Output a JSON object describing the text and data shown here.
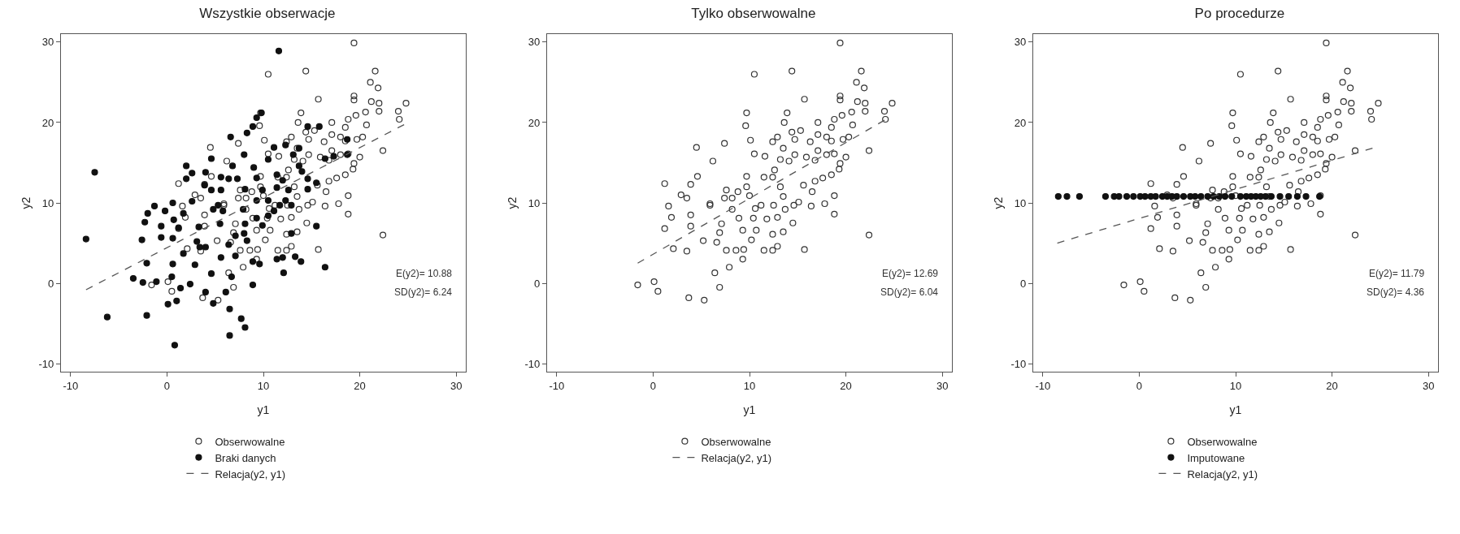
{
  "chart_data": [
    {
      "type": "scatter",
      "title": "Wszystkie obserwacje",
      "xlabel": "y1",
      "ylabel": "y2",
      "xlim": [
        -11,
        31
      ],
      "ylim": [
        -11,
        31
      ],
      "xticks": [
        -10,
        0,
        10,
        20,
        30
      ],
      "yticks": [
        -10,
        0,
        10,
        20,
        30
      ],
      "grid": false,
      "legend": "bottom",
      "annotations": [
        "E(y2)= 10.88",
        "SD(y2)= 6.24"
      ],
      "series": [
        {
          "name": "Obserwowalne",
          "marker": "circle-open",
          "color": "#333333",
          "x": [
            -1.6,
            0.1,
            0.5,
            3.7,
            5.3,
            6.9,
            6.4,
            7.9,
            9.3,
            1.2,
            1.6,
            1.9,
            1.2,
            2.1,
            3.5,
            2.9,
            3.9,
            4.6,
            4.5,
            6.2,
            3.9,
            3.9,
            5.2,
            5.9,
            6.6,
            6.9,
            7.1,
            7.6,
            7.4,
            7.6,
            8.6,
            9.4,
            9.3,
            8.9,
            9.7,
            9.7,
            9.6,
            9.7,
            10.1,
            10.5,
            10.5,
            11.6,
            10.2,
            10.7,
            11.5,
            12.4,
            12.9,
            12.4,
            13.5,
            10.4,
            11.8,
            12.9,
            14.5,
            15.7,
            11.2,
            12.5,
            13.7,
            14.6,
            13.5,
            15.1,
            16.4,
            17.8,
            18.8,
            18.8,
            22.4,
            16.5,
            15.6,
            16.8,
            17.6,
            18.5,
            13.2,
            12.4,
            11.5,
            12.6,
            13.2,
            14.1,
            14.7,
            15.9,
            16.8,
            17.1,
            18.0,
            18.8,
            19.4,
            20.0,
            19.3,
            13.5,
            12.4,
            12.9,
            14.4,
            15.3,
            14.7,
            16.3,
            17.1,
            18.0,
            18.5,
            19.7,
            20.3,
            17.1,
            18.5,
            18.8,
            19.6,
            20.6,
            20.7,
            19.4,
            19.4,
            21.2,
            22.0,
            22.0,
            21.9,
            21.1,
            21.6,
            19.4,
            14.4,
            15.7,
            13.9,
            13.6,
            22.4,
            24.8,
            24.0,
            24.1,
            8.2,
            8.8,
            10.0,
            10.6,
            8.2,
            7.4,
            5.9,
            3.5
          ],
          "values": [
            -0.2,
            0.2,
            -1.0,
            -1.8,
            -2.1,
            -0.5,
            1.3,
            2.0,
            3.0,
            12.4,
            9.6,
            8.2,
            6.8,
            4.3,
            4.0,
            11.0,
            12.3,
            13.3,
            16.9,
            15.2,
            8.5,
            7.1,
            5.3,
            9.9,
            5.1,
            6.3,
            7.4,
            11.6,
            17.4,
            4.1,
            4.1,
            4.2,
            6.6,
            8.1,
            12.0,
            13.3,
            19.6,
            21.2,
            17.8,
            26.0,
            16.1,
            15.8,
            5.4,
            6.6,
            4.1,
            4.1,
            4.6,
            6.1,
            6.4,
            8.1,
            8.0,
            8.2,
            7.5,
            4.2,
            9.7,
            9.7,
            9.2,
            9.7,
            10.8,
            10.1,
            9.6,
            9.9,
            8.6,
            10.9,
            6.0,
            11.4,
            12.2,
            12.7,
            13.1,
            13.5,
            12.0,
            13.2,
            13.2,
            14.1,
            15.4,
            15.2,
            16.0,
            15.7,
            15.3,
            16.5,
            16.0,
            16.1,
            14.9,
            15.7,
            14.2,
            16.8,
            17.6,
            18.2,
            18.8,
            19.0,
            17.9,
            17.6,
            18.5,
            18.2,
            17.7,
            17.9,
            18.2,
            20.0,
            19.4,
            20.4,
            20.9,
            21.3,
            19.7,
            23.3,
            22.8,
            22.6,
            22.4,
            21.4,
            24.3,
            25.0,
            26.4,
            29.9,
            26.4,
            22.9,
            21.2,
            20.0,
            16.5,
            22.4,
            21.4,
            20.4,
            10.6,
            11.4,
            10.9,
            9.3,
            9.2,
            10.6,
            9.7,
            10.6
          ]
        },
        {
          "name": "Braki danych",
          "marker": "circle",
          "color": "#111111",
          "x": [
            -7.5,
            -8.4,
            -6.2,
            0.8,
            -2.1,
            -3.5,
            -2.5,
            -1.1,
            0.1,
            1.0,
            1.4,
            2.4,
            0.5,
            0.6,
            -2.1,
            -2.6,
            -0.6,
            0.6,
            -0.6,
            1.2,
            -2.3,
            -2.0,
            -1.3,
            -0.2,
            0.6,
            0.7,
            1.7,
            1.7,
            2.9,
            3.1,
            3.4,
            4.0,
            3.3,
            2.6,
            2.0,
            2.6,
            2.0,
            4.0,
            4.6,
            3.9,
            4.6,
            5.6,
            6.4,
            5.6,
            5.3,
            4.8,
            5.8,
            5.5,
            4.6,
            4.0,
            4.8,
            6.1,
            6.5,
            6.5,
            7.7,
            8.1,
            6.7,
            5.6,
            6.4,
            7.1,
            8.0,
            8.3,
            7.1,
            8.9,
            8.9,
            9.6,
            6.6,
            8.0,
            8.3,
            8.9,
            9.3,
            9.8,
            6.8,
            7.3,
            8.1,
            9.0,
            9.3,
            9.9,
            9.3,
            10.5,
            11.1,
            10.5,
            9.3,
            9.9,
            8.1,
            11.4,
            12.0,
            12.6,
            12.3,
            11.4,
            10.5,
            11.1,
            12.3,
            13.1,
            13.7,
            11.6,
            12.1,
            11.4,
            12.0,
            13.3,
            13.9,
            12.9,
            15.5,
            16.4,
            13.7,
            14.0,
            14.6,
            14.6,
            15.5,
            15.8,
            14.6,
            18.7,
            17.3,
            18.7,
            16.4,
            12.9,
            11.7,
            7.9
          ],
          "values": [
            13.8,
            5.5,
            -4.2,
            -7.7,
            -4.0,
            0.6,
            0.1,
            0.2,
            -2.6,
            -2.2,
            -0.6,
            -0.1,
            0.8,
            2.4,
            2.5,
            5.4,
            5.7,
            5.6,
            7.1,
            6.9,
            7.6,
            8.7,
            9.6,
            9.0,
            10.0,
            7.9,
            8.7,
            3.7,
            2.3,
            5.2,
            4.5,
            4.5,
            7.0,
            10.2,
            14.6,
            13.7,
            13.0,
            13.8,
            15.5,
            12.2,
            11.6,
            13.2,
            13.0,
            11.6,
            9.7,
            9.2,
            9.0,
            7.4,
            1.2,
            -1.1,
            -2.5,
            -1.1,
            -3.2,
            -6.5,
            -4.4,
            -5.5,
            0.8,
            3.2,
            4.8,
            5.9,
            6.2,
            5.3,
            3.4,
            2.7,
            -0.2,
            2.4,
            18.2,
            16.0,
            18.7,
            19.5,
            20.6,
            21.2,
            14.6,
            13.0,
            11.7,
            14.4,
            13.1,
            11.6,
            10.3,
            10.3,
            9.0,
            8.4,
            8.1,
            7.2,
            7.4,
            11.9,
            12.8,
            11.6,
            10.3,
            13.5,
            15.4,
            16.9,
            17.2,
            16.0,
            16.8,
            28.9,
            1.3,
            3.0,
            3.2,
            3.3,
            2.7,
            6.2,
            7.1,
            2.0,
            14.6,
            13.9,
            13.0,
            11.7,
            12.5,
            19.5,
            19.5,
            17.9,
            15.8,
            16.0,
            15.5,
            9.7,
            9.7,
            9.2
          ]
        },
        {
          "name": "Relacja(y2, y1)",
          "type": "line",
          "line_style": "dashed",
          "color": "#555555",
          "x": [
            -8.4,
            24.7
          ],
          "values": [
            -0.8,
            19.8
          ]
        }
      ]
    },
    {
      "type": "scatter",
      "title": "Tylko obserwowalne",
      "xlabel": "y1",
      "ylabel": "y2",
      "xlim": [
        -11,
        31
      ],
      "ylim": [
        -11,
        31
      ],
      "xticks": [
        -10,
        0,
        10,
        20,
        30
      ],
      "yticks": [
        -10,
        0,
        10,
        20,
        30
      ],
      "grid": false,
      "legend": "bottom",
      "annotations": [
        "E(y2)= 12.69",
        "SD(y2)= 6.04"
      ],
      "series": [
        {
          "name": "Obserwowalne",
          "marker": "circle-open",
          "color": "#333333",
          "x": [
            -1.6,
            0.1,
            0.5,
            3.7,
            5.3,
            6.9,
            6.4,
            7.9,
            9.3,
            1.2,
            1.6,
            1.9,
            1.2,
            2.1,
            3.5,
            2.9,
            3.9,
            4.6,
            4.5,
            6.2,
            3.9,
            3.9,
            5.2,
            5.9,
            6.6,
            6.9,
            7.1,
            7.6,
            7.4,
            7.6,
            8.6,
            9.4,
            9.3,
            8.9,
            9.7,
            9.7,
            9.6,
            9.7,
            10.1,
            10.5,
            10.5,
            11.6,
            10.2,
            10.7,
            11.5,
            12.4,
            12.9,
            12.4,
            13.5,
            10.4,
            11.8,
            12.9,
            14.5,
            15.7,
            11.2,
            12.5,
            13.7,
            14.6,
            13.5,
            15.1,
            16.4,
            17.8,
            18.8,
            18.8,
            22.4,
            16.5,
            15.6,
            16.8,
            17.6,
            18.5,
            13.2,
            12.4,
            11.5,
            12.6,
            13.2,
            14.1,
            14.7,
            15.9,
            16.8,
            17.1,
            18.0,
            18.8,
            19.4,
            20.0,
            19.3,
            13.5,
            12.4,
            12.9,
            14.4,
            15.3,
            14.7,
            16.3,
            17.1,
            18.0,
            18.5,
            19.7,
            20.3,
            17.1,
            18.5,
            18.8,
            19.6,
            20.6,
            20.7,
            19.4,
            19.4,
            21.2,
            22.0,
            22.0,
            21.9,
            21.1,
            21.6,
            19.4,
            14.4,
            15.7,
            13.9,
            13.6,
            22.4,
            24.8,
            24.0,
            24.1,
            8.2,
            8.8,
            10.0,
            10.6,
            8.2,
            7.4,
            5.9,
            3.5
          ],
          "values": [
            -0.2,
            0.2,
            -1.0,
            -1.8,
            -2.1,
            -0.5,
            1.3,
            2.0,
            3.0,
            12.4,
            9.6,
            8.2,
            6.8,
            4.3,
            4.0,
            11.0,
            12.3,
            13.3,
            16.9,
            15.2,
            8.5,
            7.1,
            5.3,
            9.9,
            5.1,
            6.3,
            7.4,
            11.6,
            17.4,
            4.1,
            4.1,
            4.2,
            6.6,
            8.1,
            12.0,
            13.3,
            19.6,
            21.2,
            17.8,
            26.0,
            16.1,
            15.8,
            5.4,
            6.6,
            4.1,
            4.1,
            4.6,
            6.1,
            6.4,
            8.1,
            8.0,
            8.2,
            7.5,
            4.2,
            9.7,
            9.7,
            9.2,
            9.7,
            10.8,
            10.1,
            9.6,
            9.9,
            8.6,
            10.9,
            6.0,
            11.4,
            12.2,
            12.7,
            13.1,
            13.5,
            12.0,
            13.2,
            13.2,
            14.1,
            15.4,
            15.2,
            16.0,
            15.7,
            15.3,
            16.5,
            16.0,
            16.1,
            14.9,
            15.7,
            14.2,
            16.8,
            17.6,
            18.2,
            18.8,
            19.0,
            17.9,
            17.6,
            18.5,
            18.2,
            17.7,
            17.9,
            18.2,
            20.0,
            19.4,
            20.4,
            20.9,
            21.3,
            19.7,
            23.3,
            22.8,
            22.6,
            22.4,
            21.4,
            24.3,
            25.0,
            26.4,
            29.9,
            26.4,
            22.9,
            21.2,
            20.0,
            16.5,
            22.4,
            21.4,
            20.4,
            10.6,
            11.4,
            10.9,
            9.3,
            9.2,
            10.6,
            9.7,
            10.6
          ]
        },
        {
          "name": "Relacja(y2, y1)",
          "type": "line",
          "line_style": "dashed",
          "color": "#555555",
          "x": [
            -1.6,
            24.6
          ],
          "values": [
            2.5,
            20.7
          ]
        }
      ]
    },
    {
      "type": "scatter",
      "title": "Po procedurze",
      "xlabel": "y1",
      "ylabel": "y2",
      "xlim": [
        -11,
        31
      ],
      "ylim": [
        -11,
        31
      ],
      "xticks": [
        -10,
        0,
        10,
        20,
        30
      ],
      "yticks": [
        -10,
        0,
        10,
        20,
        30
      ],
      "grid": false,
      "legend": "bottom",
      "annotations": [
        "E(y2)= 11.79",
        "SD(y2)= 4.36"
      ],
      "series": [
        {
          "name": "Obserwowalne",
          "marker": "circle-open",
          "color": "#333333",
          "x": [
            -1.6,
            0.1,
            0.5,
            3.7,
            5.3,
            6.9,
            6.4,
            7.9,
            9.3,
            1.2,
            1.6,
            1.9,
            1.2,
            2.1,
            3.5,
            2.9,
            3.9,
            4.6,
            4.5,
            6.2,
            3.9,
            3.9,
            5.2,
            5.9,
            6.6,
            6.9,
            7.1,
            7.6,
            7.4,
            7.6,
            8.6,
            9.4,
            9.3,
            8.9,
            9.7,
            9.7,
            9.6,
            9.7,
            10.1,
            10.5,
            10.5,
            11.6,
            10.2,
            10.7,
            11.5,
            12.4,
            12.9,
            12.4,
            13.5,
            10.4,
            11.8,
            12.9,
            14.5,
            15.7,
            11.2,
            12.5,
            13.7,
            14.6,
            13.5,
            15.1,
            16.4,
            17.8,
            18.8,
            18.8,
            22.4,
            16.5,
            15.6,
            16.8,
            17.6,
            18.5,
            13.2,
            12.4,
            11.5,
            12.6,
            13.2,
            14.1,
            14.7,
            15.9,
            16.8,
            17.1,
            18.0,
            18.8,
            19.4,
            20.0,
            19.3,
            13.5,
            12.4,
            12.9,
            14.4,
            15.3,
            14.7,
            16.3,
            17.1,
            18.0,
            18.5,
            19.7,
            20.3,
            17.1,
            18.5,
            18.8,
            19.6,
            20.6,
            20.7,
            19.4,
            19.4,
            21.2,
            22.0,
            22.0,
            21.9,
            21.1,
            21.6,
            19.4,
            14.4,
            15.7,
            13.9,
            13.6,
            22.4,
            24.8,
            24.0,
            24.1,
            8.2,
            8.8,
            10.0,
            10.6,
            8.2,
            7.4,
            5.9,
            3.5
          ],
          "values": [
            -0.2,
            0.2,
            -1.0,
            -1.8,
            -2.1,
            -0.5,
            1.3,
            2.0,
            3.0,
            12.4,
            9.6,
            8.2,
            6.8,
            4.3,
            4.0,
            11.0,
            12.3,
            13.3,
            16.9,
            15.2,
            8.5,
            7.1,
            5.3,
            9.9,
            5.1,
            6.3,
            7.4,
            11.6,
            17.4,
            4.1,
            4.1,
            4.2,
            6.6,
            8.1,
            12.0,
            13.3,
            19.6,
            21.2,
            17.8,
            26.0,
            16.1,
            15.8,
            5.4,
            6.6,
            4.1,
            4.1,
            4.6,
            6.1,
            6.4,
            8.1,
            8.0,
            8.2,
            7.5,
            4.2,
            9.7,
            9.7,
            9.2,
            9.7,
            10.8,
            10.1,
            9.6,
            9.9,
            8.6,
            10.9,
            6.0,
            11.4,
            12.2,
            12.7,
            13.1,
            13.5,
            12.0,
            13.2,
            13.2,
            14.1,
            15.4,
            15.2,
            16.0,
            15.7,
            15.3,
            16.5,
            16.0,
            16.1,
            14.9,
            15.7,
            14.2,
            16.8,
            17.6,
            18.2,
            18.8,
            19.0,
            17.9,
            17.6,
            18.5,
            18.2,
            17.7,
            17.9,
            18.2,
            20.0,
            19.4,
            20.4,
            20.9,
            21.3,
            19.7,
            23.3,
            22.8,
            22.6,
            22.4,
            21.4,
            24.3,
            25.0,
            26.4,
            29.9,
            26.4,
            22.9,
            21.2,
            20.0,
            16.5,
            22.4,
            21.4,
            20.4,
            10.6,
            11.4,
            10.9,
            9.3,
            9.2,
            10.6,
            9.7,
            10.6
          ]
        },
        {
          "name": "Imputowane",
          "marker": "circle",
          "color": "#111111",
          "x": [
            -8.4,
            -7.5,
            -6.2,
            -3.5,
            -2.6,
            -2.1,
            -1.3,
            -0.6,
            0.1,
            0.6,
            1.2,
            1.7,
            2.4,
            2.9,
            3.4,
            3.9,
            4.6,
            5.3,
            5.8,
            6.4,
            7.1,
            7.7,
            8.3,
            8.9,
            9.6,
            10.5,
            11.1,
            11.6,
            12.1,
            12.6,
            13.1,
            13.7,
            14.6,
            15.5,
            16.4,
            17.3,
            18.7
          ],
          "values": [
            10.8,
            10.8,
            10.8,
            10.8,
            10.8,
            10.8,
            10.8,
            10.8,
            10.8,
            10.8,
            10.8,
            10.8,
            10.8,
            10.8,
            10.8,
            10.8,
            10.8,
            10.8,
            10.8,
            10.8,
            10.8,
            10.8,
            10.8,
            10.8,
            10.8,
            10.8,
            10.8,
            10.8,
            10.8,
            10.8,
            10.8,
            10.8,
            10.8,
            10.8,
            10.8,
            10.8,
            10.8
          ]
        },
        {
          "name": "Relacja(y2, y1)",
          "type": "line",
          "line_style": "dashed",
          "color": "#555555",
          "x": [
            -8.5,
            24.2
          ],
          "values": [
            5.0,
            16.8
          ]
        }
      ]
    }
  ]
}
